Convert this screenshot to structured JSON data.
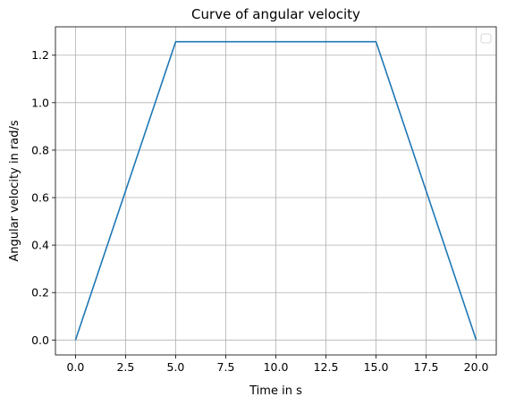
{
  "chart_data": {
    "type": "line",
    "title": "Curve of angular velocity",
    "xlabel": "Time in s",
    "ylabel": "Angular velocity in rad/s",
    "xlim": [
      -1,
      21
    ],
    "ylim": [
      -0.0628,
      1.3195
    ],
    "x_ticks": [
      0.0,
      2.5,
      5.0,
      7.5,
      10.0,
      12.5,
      15.0,
      17.5,
      20.0
    ],
    "x_tick_labels": [
      "0.0",
      "2.5",
      "5.0",
      "7.5",
      "10.0",
      "12.5",
      "15.0",
      "17.5",
      "20.0"
    ],
    "y_ticks": [
      0.0,
      0.2,
      0.4,
      0.6,
      0.8,
      1.0,
      1.2
    ],
    "y_tick_labels": [
      "0.0",
      "0.2",
      "0.4",
      "0.6",
      "0.8",
      "1.0",
      "1.2"
    ],
    "grid": true,
    "legend": "top-right (empty)",
    "series": [
      {
        "x": [
          0,
          5,
          15,
          20
        ],
        "y": [
          0,
          1.2566,
          1.2566,
          0
        ],
        "color": "#1f77b4"
      }
    ]
  }
}
